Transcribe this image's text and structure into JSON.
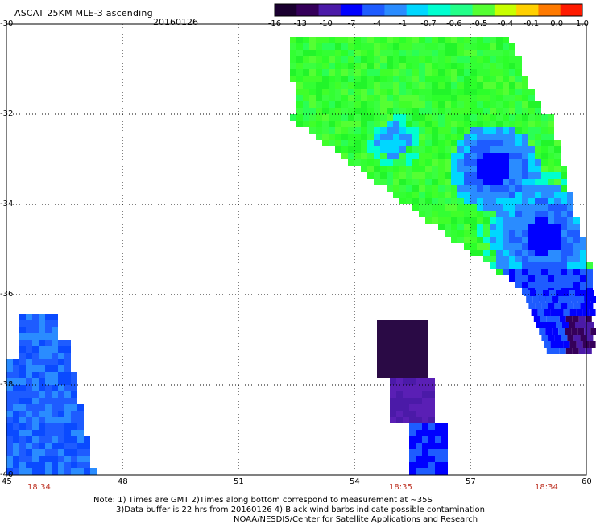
{
  "header": {
    "title": "ASCAT 25KM MLE-3 ascending",
    "date": "20160126"
  },
  "colorbar": {
    "tick_labels": [
      "-16",
      "-13",
      "-10",
      "-7",
      "-4",
      "-1",
      "-0.7",
      "-0.6",
      "-0.5",
      "-0.4",
      "-0.1",
      "0.0",
      "1.0"
    ],
    "colors": [
      "#1a0030",
      "#35005a",
      "#4b1aa8",
      "#0000ff",
      "#1e5cff",
      "#2a8cff",
      "#00d7ff",
      "#00ffd0",
      "#22ff88",
      "#55ff33",
      "#c8ff00",
      "#ffd000",
      "#ff7a00",
      "#ff1a00"
    ]
  },
  "axes": {
    "y_labels": [
      "-30",
      "-32",
      "-34",
      "-36",
      "-38",
      "-40"
    ],
    "x_labels": [
      "45",
      "48",
      "51",
      "54",
      "57",
      "60"
    ]
  },
  "times": [
    "18:34",
    "18:35",
    "18:34"
  ],
  "notes": {
    "line1": "Note: 1) Times are GMT 2)Times along bottom correspond to measurement at ~35S",
    "line2": "3)Data buffer is 22 hrs from 20160126 4) Black wind barbs indicate possible contamination",
    "line3": "NOAA/NESDIS/Center for Satellite Applications and Research"
  }
}
